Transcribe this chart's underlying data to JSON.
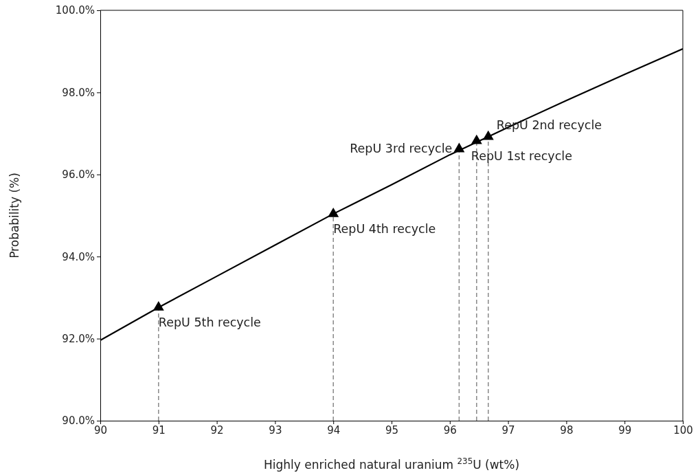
{
  "chart_data": {
    "type": "line",
    "xlabel": "Highly enriched natural uranium $^{235}$U (wt%)",
    "ylabel": "Probability (%)",
    "xlim": [
      90,
      100
    ],
    "ylim": [
      90,
      100
    ],
    "xticks": [
      90,
      91,
      92,
      93,
      94,
      95,
      96,
      97,
      98,
      99,
      100
    ],
    "yticks": [
      {
        "value": 90,
        "label": "90.0%"
      },
      {
        "value": 92,
        "label": "92.0%"
      },
      {
        "value": 94,
        "label": "94.0%"
      },
      {
        "value": 96,
        "label": "96.0%"
      },
      {
        "value": 98,
        "label": "98.0%"
      },
      {
        "value": 100,
        "label": "100.0%"
      }
    ],
    "grid": false,
    "series": [
      {
        "color": "#000000",
        "x": [
          90,
          91,
          92,
          93,
          94,
          95,
          96,
          97,
          98,
          99,
          100
        ],
        "values": [
          91.96,
          92.76,
          93.52,
          94.28,
          95.04,
          95.75,
          96.48,
          97.15,
          97.8,
          98.44,
          99.06
        ],
        "marker": "none",
        "line_style": "solid"
      },
      {
        "type": "lollipop",
        "color": "#000000",
        "x": [
          96.46,
          96.66,
          96.16,
          94.0,
          91.0
        ],
        "values": [
          96.82,
          96.92,
          96.62,
          95.04,
          92.76
        ],
        "marker": "triangle",
        "line_style": "dashed"
      }
    ],
    "annotations": [
      {
        "text": "RepU 1st recycle",
        "x": 96.46,
        "y": 96.82
      },
      {
        "text": "RepU 2nd recycle",
        "x": 96.66,
        "y": 96.92
      },
      {
        "text": "RepU 3rd recycle",
        "x": 96.16,
        "y": 96.62
      },
      {
        "text": "RepU 4th recycle",
        "x": 94.0,
        "y": 95.04
      },
      {
        "text": "RepU 5th recycle",
        "x": 91.0,
        "y": 92.76
      }
    ]
  }
}
